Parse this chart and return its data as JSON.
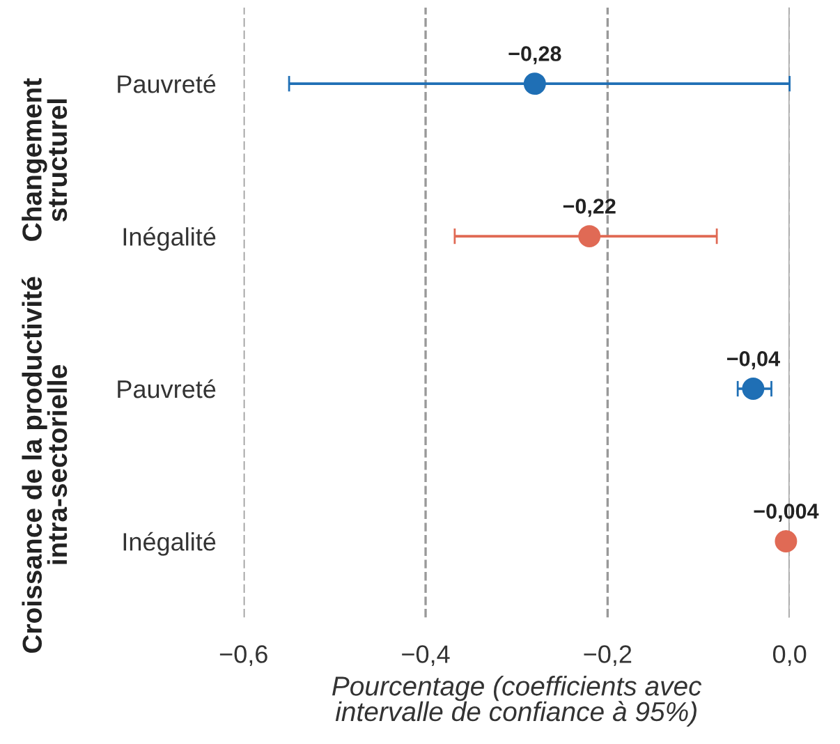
{
  "chart_data": {
    "type": "scatter",
    "orientation": "horizontal",
    "categories": [
      "Pauvreté",
      "Inégalité",
      "Pauvreté",
      "Inégalité"
    ],
    "values": [
      -0.28,
      -0.22,
      -0.04,
      -0.004
    ],
    "errors": [
      [
        -0.55,
        0.0
      ],
      [
        -0.368,
        -0.08
      ],
      [
        -0.057,
        -0.02
      ],
      null
    ],
    "colors": [
      "#1f6fb5",
      "#e06a55",
      "#1f6fb5",
      "#e06a55"
    ],
    "value_labels": [
      "−0,28",
      "−0,22",
      "−0,04",
      "−0,004"
    ],
    "xlabel": "Pourcentage (coefficients avec\nintervalle de confiance à 95%)",
    "annotations": [
      "Changement\nstructurel",
      "Croissance de la productivité\nintra-sectorielle"
    ],
    "xlim": [
      -0.6,
      0.0
    ],
    "xticks": [
      {
        "value": -0.6,
        "label": "−0,6"
      },
      {
        "value": -0.4,
        "label": "−0,4"
      },
      {
        "value": -0.2,
        "label": "−0,2"
      },
      {
        "value": 0.0,
        "label": "0,0"
      }
    ],
    "grid": "x",
    "marker": "circle",
    "ref_lines": [
      {
        "axis": "x",
        "value": 0.0,
        "label": null,
        "color": "#aaaaaa",
        "line_style": "solid"
      }
    ]
  }
}
